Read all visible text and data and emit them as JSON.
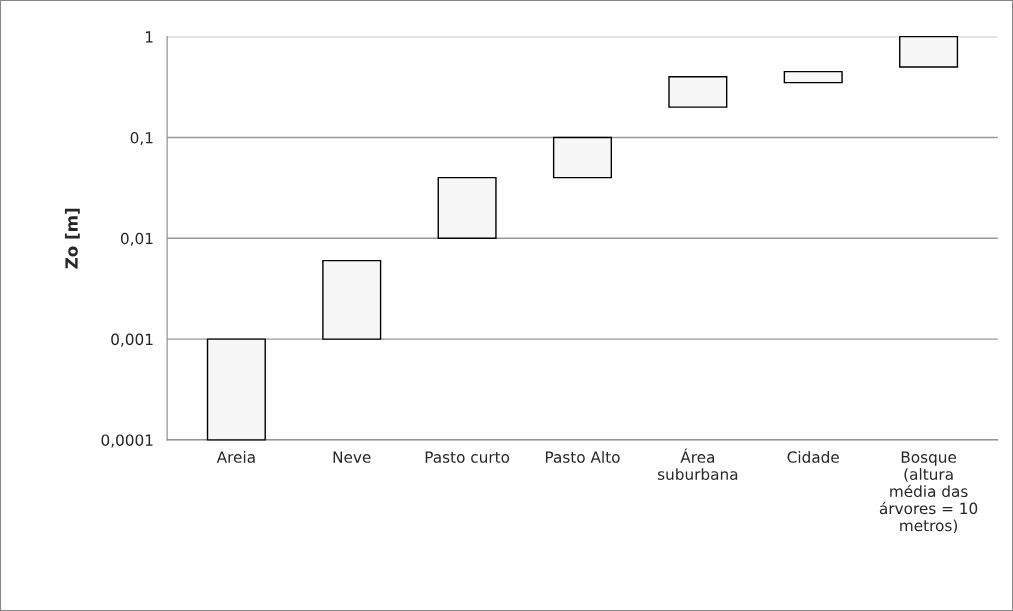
{
  "chart_data": {
    "type": "bar",
    "ylabel": "Zo [m]",
    "log": "y",
    "categories": [
      "Areia",
      "Neve",
      "Pasto curto",
      "Pasto Alto",
      "Área\nsuburbana",
      "Cidade",
      "Bosque\n(altura\nmédia das\nárvores = 10\nmetros)"
    ],
    "base": [
      0.0001,
      0.001,
      0.01,
      0.04,
      0.2,
      0.35,
      0.5
    ],
    "values": [
      0.0009,
      0.005,
      0.03,
      0.06,
      0.2,
      0.1,
      0.5
    ],
    "color": "#f7f7f7",
    "ylim": [
      0.0001,
      1
    ],
    "yticks": [
      {
        "value": 0.0001,
        "label": "0,0001"
      },
      {
        "value": 0.001,
        "label": "0,001"
      },
      {
        "value": 0.01,
        "label": "0,01"
      },
      {
        "value": 0.1,
        "label": "0,1"
      },
      1
    ],
    "grid": "y",
    "legend": false
  }
}
